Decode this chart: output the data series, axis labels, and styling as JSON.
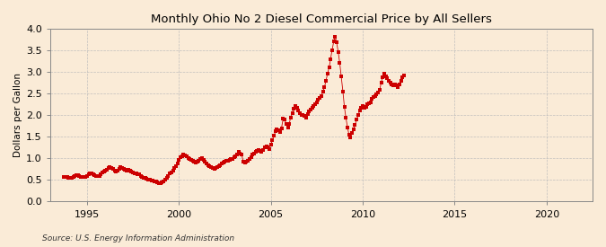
{
  "title": "Monthly Ohio No 2 Diesel Commercial Price by All Sellers",
  "ylabel": "Dollars per Gallon",
  "source": "Source: U.S. Energy Information Administration",
  "background_color": "#faebd7",
  "line_color": "#cc0000",
  "marker": "s",
  "markersize": 2.2,
  "xlim": [
    1993.0,
    2022.5
  ],
  "ylim": [
    0.0,
    4.0
  ],
  "yticks": [
    0.0,
    0.5,
    1.0,
    1.5,
    2.0,
    2.5,
    3.0,
    3.5,
    4.0
  ],
  "xticks": [
    1995,
    2000,
    2005,
    2010,
    2015,
    2020
  ],
  "data": [
    [
      1993.75,
      0.58
    ],
    [
      1993.83,
      0.57
    ],
    [
      1993.92,
      0.57
    ],
    [
      1994.0,
      0.56
    ],
    [
      1994.08,
      0.56
    ],
    [
      1994.17,
      0.55
    ],
    [
      1994.25,
      0.57
    ],
    [
      1994.33,
      0.59
    ],
    [
      1994.42,
      0.61
    ],
    [
      1994.5,
      0.62
    ],
    [
      1994.58,
      0.6
    ],
    [
      1994.67,
      0.58
    ],
    [
      1994.75,
      0.57
    ],
    [
      1994.83,
      0.57
    ],
    [
      1994.92,
      0.58
    ],
    [
      1995.0,
      0.6
    ],
    [
      1995.08,
      0.63
    ],
    [
      1995.17,
      0.65
    ],
    [
      1995.25,
      0.66
    ],
    [
      1995.33,
      0.64
    ],
    [
      1995.42,
      0.62
    ],
    [
      1995.5,
      0.6
    ],
    [
      1995.58,
      0.59
    ],
    [
      1995.67,
      0.6
    ],
    [
      1995.75,
      0.64
    ],
    [
      1995.83,
      0.68
    ],
    [
      1995.92,
      0.7
    ],
    [
      1996.0,
      0.72
    ],
    [
      1996.08,
      0.74
    ],
    [
      1996.17,
      0.78
    ],
    [
      1996.25,
      0.8
    ],
    [
      1996.33,
      0.78
    ],
    [
      1996.42,
      0.75
    ],
    [
      1996.5,
      0.72
    ],
    [
      1996.58,
      0.7
    ],
    [
      1996.67,
      0.72
    ],
    [
      1996.75,
      0.76
    ],
    [
      1996.83,
      0.8
    ],
    [
      1996.92,
      0.78
    ],
    [
      1997.0,
      0.75
    ],
    [
      1997.08,
      0.73
    ],
    [
      1997.17,
      0.72
    ],
    [
      1997.25,
      0.74
    ],
    [
      1997.33,
      0.72
    ],
    [
      1997.42,
      0.7
    ],
    [
      1997.5,
      0.68
    ],
    [
      1997.58,
      0.66
    ],
    [
      1997.67,
      0.65
    ],
    [
      1997.75,
      0.64
    ],
    [
      1997.83,
      0.63
    ],
    [
      1997.92,
      0.6
    ],
    [
      1998.0,
      0.58
    ],
    [
      1998.08,
      0.56
    ],
    [
      1998.17,
      0.54
    ],
    [
      1998.25,
      0.52
    ],
    [
      1998.33,
      0.51
    ],
    [
      1998.42,
      0.5
    ],
    [
      1998.5,
      0.49
    ],
    [
      1998.58,
      0.48
    ],
    [
      1998.67,
      0.47
    ],
    [
      1998.75,
      0.46
    ],
    [
      1998.83,
      0.44
    ],
    [
      1998.92,
      0.43
    ],
    [
      1999.0,
      0.42
    ],
    [
      1999.08,
      0.44
    ],
    [
      1999.17,
      0.46
    ],
    [
      1999.25,
      0.5
    ],
    [
      1999.33,
      0.55
    ],
    [
      1999.42,
      0.6
    ],
    [
      1999.5,
      0.65
    ],
    [
      1999.58,
      0.68
    ],
    [
      1999.67,
      0.72
    ],
    [
      1999.75,
      0.78
    ],
    [
      1999.83,
      0.82
    ],
    [
      1999.92,
      0.88
    ],
    [
      2000.0,
      0.96
    ],
    [
      2000.08,
      1.02
    ],
    [
      2000.17,
      1.05
    ],
    [
      2000.25,
      1.08
    ],
    [
      2000.33,
      1.06
    ],
    [
      2000.42,
      1.04
    ],
    [
      2000.5,
      1.0
    ],
    [
      2000.58,
      0.98
    ],
    [
      2000.67,
      0.96
    ],
    [
      2000.75,
      0.95
    ],
    [
      2000.83,
      0.92
    ],
    [
      2000.92,
      0.9
    ],
    [
      2001.0,
      0.92
    ],
    [
      2001.08,
      0.95
    ],
    [
      2001.17,
      0.98
    ],
    [
      2001.25,
      1.0
    ],
    [
      2001.33,
      0.97
    ],
    [
      2001.42,
      0.93
    ],
    [
      2001.5,
      0.88
    ],
    [
      2001.58,
      0.84
    ],
    [
      2001.67,
      0.82
    ],
    [
      2001.75,
      0.8
    ],
    [
      2001.83,
      0.78
    ],
    [
      2001.92,
      0.76
    ],
    [
      2002.0,
      0.78
    ],
    [
      2002.08,
      0.8
    ],
    [
      2002.17,
      0.82
    ],
    [
      2002.25,
      0.85
    ],
    [
      2002.33,
      0.88
    ],
    [
      2002.42,
      0.9
    ],
    [
      2002.5,
      0.92
    ],
    [
      2002.58,
      0.94
    ],
    [
      2002.67,
      0.95
    ],
    [
      2002.75,
      0.97
    ],
    [
      2002.83,
      0.98
    ],
    [
      2002.92,
      0.99
    ],
    [
      2003.0,
      1.02
    ],
    [
      2003.08,
      1.05
    ],
    [
      2003.17,
      1.1
    ],
    [
      2003.25,
      1.15
    ],
    [
      2003.33,
      1.12
    ],
    [
      2003.42,
      1.08
    ],
    [
      2003.5,
      0.92
    ],
    [
      2003.58,
      0.9
    ],
    [
      2003.67,
      0.92
    ],
    [
      2003.75,
      0.95
    ],
    [
      2003.83,
      0.98
    ],
    [
      2003.92,
      1.02
    ],
    [
      2004.0,
      1.08
    ],
    [
      2004.08,
      1.12
    ],
    [
      2004.17,
      1.15
    ],
    [
      2004.25,
      1.18
    ],
    [
      2004.33,
      1.2
    ],
    [
      2004.42,
      1.18
    ],
    [
      2004.5,
      1.15
    ],
    [
      2004.58,
      1.2
    ],
    [
      2004.67,
      1.25
    ],
    [
      2004.75,
      1.28
    ],
    [
      2004.83,
      1.25
    ],
    [
      2004.92,
      1.22
    ],
    [
      2005.0,
      1.32
    ],
    [
      2005.08,
      1.42
    ],
    [
      2005.17,
      1.52
    ],
    [
      2005.25,
      1.62
    ],
    [
      2005.33,
      1.68
    ],
    [
      2005.42,
      1.65
    ],
    [
      2005.5,
      1.6
    ],
    [
      2005.58,
      1.7
    ],
    [
      2005.67,
      1.92
    ],
    [
      2005.75,
      1.9
    ],
    [
      2005.83,
      1.8
    ],
    [
      2005.92,
      1.72
    ],
    [
      2006.0,
      1.8
    ],
    [
      2006.08,
      1.95
    ],
    [
      2006.17,
      2.05
    ],
    [
      2006.25,
      2.15
    ],
    [
      2006.33,
      2.22
    ],
    [
      2006.42,
      2.18
    ],
    [
      2006.5,
      2.1
    ],
    [
      2006.58,
      2.05
    ],
    [
      2006.67,
      2.0
    ],
    [
      2006.75,
      2.0
    ],
    [
      2006.83,
      1.98
    ],
    [
      2006.92,
      1.95
    ],
    [
      2007.0,
      2.02
    ],
    [
      2007.08,
      2.08
    ],
    [
      2007.17,
      2.12
    ],
    [
      2007.25,
      2.18
    ],
    [
      2007.33,
      2.22
    ],
    [
      2007.42,
      2.25
    ],
    [
      2007.5,
      2.3
    ],
    [
      2007.58,
      2.35
    ],
    [
      2007.67,
      2.4
    ],
    [
      2007.75,
      2.45
    ],
    [
      2007.83,
      2.55
    ],
    [
      2007.92,
      2.65
    ],
    [
      2008.0,
      2.8
    ],
    [
      2008.08,
      2.95
    ],
    [
      2008.17,
      3.1
    ],
    [
      2008.25,
      3.3
    ],
    [
      2008.33,
      3.5
    ],
    [
      2008.42,
      3.7
    ],
    [
      2008.5,
      3.82
    ],
    [
      2008.58,
      3.68
    ],
    [
      2008.67,
      3.45
    ],
    [
      2008.75,
      3.2
    ],
    [
      2008.83,
      2.9
    ],
    [
      2008.92,
      2.55
    ],
    [
      2009.0,
      2.2
    ],
    [
      2009.08,
      1.95
    ],
    [
      2009.17,
      1.72
    ],
    [
      2009.25,
      1.55
    ],
    [
      2009.33,
      1.48
    ],
    [
      2009.42,
      1.58
    ],
    [
      2009.5,
      1.68
    ],
    [
      2009.58,
      1.78
    ],
    [
      2009.67,
      1.9
    ],
    [
      2009.75,
      2.0
    ],
    [
      2009.83,
      2.1
    ],
    [
      2009.92,
      2.18
    ],
    [
      2010.0,
      2.22
    ],
    [
      2010.08,
      2.18
    ],
    [
      2010.17,
      2.2
    ],
    [
      2010.25,
      2.25
    ],
    [
      2010.33,
      2.28
    ],
    [
      2010.42,
      2.3
    ],
    [
      2010.5,
      2.38
    ],
    [
      2010.58,
      2.42
    ],
    [
      2010.67,
      2.45
    ],
    [
      2010.75,
      2.48
    ],
    [
      2010.83,
      2.52
    ],
    [
      2010.92,
      2.58
    ],
    [
      2011.0,
      2.75
    ],
    [
      2011.08,
      2.88
    ],
    [
      2011.17,
      2.95
    ],
    [
      2011.25,
      2.9
    ],
    [
      2011.33,
      2.85
    ],
    [
      2011.42,
      2.8
    ],
    [
      2011.5,
      2.75
    ],
    [
      2011.58,
      2.72
    ],
    [
      2011.67,
      2.7
    ],
    [
      2011.75,
      2.72
    ],
    [
      2011.83,
      2.68
    ],
    [
      2011.92,
      2.65
    ],
    [
      2012.0,
      2.72
    ],
    [
      2012.08,
      2.8
    ],
    [
      2012.17,
      2.88
    ],
    [
      2012.25,
      2.92
    ]
  ]
}
